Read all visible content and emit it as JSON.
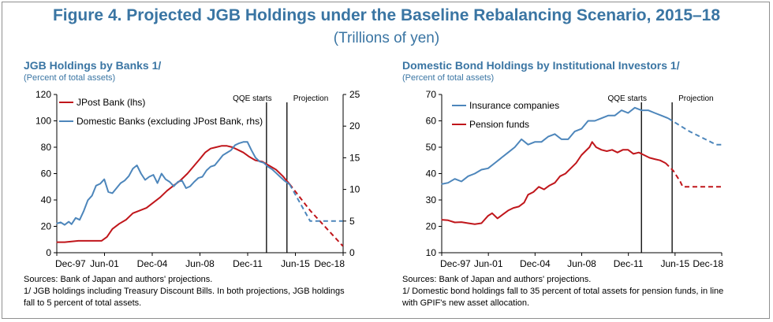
{
  "figure": {
    "title": "Figure 4. Projected JGB Holdings under the Baseline Rebalancing Scenario, 2015–18",
    "subtitle": "(Trillions of yen)"
  },
  "colors": {
    "title": "#3a75a3",
    "red": "#c0161b",
    "blue": "#4d86bb",
    "black": "#000000"
  },
  "left": {
    "title": "JGB Holdings by Banks 1/",
    "subtitle": "(Percent of total assets)",
    "sources": "Sources: Bank of Japan and authors' projections.",
    "note_line1": "1/ JGB holdings including Treasury Discount Bills. In both projections, JGB holdings",
    "note_line2": "fall to 5 percent of total assets."
  },
  "right": {
    "title": "Domestic Bond Holdings by Institutional Investors 1/",
    "subtitle": "(Percent of total assets)",
    "sources": "Sources: Bank of Japan and authors' projections.",
    "note_line1": "1/ Domestic bond holdings fall to 35 percent of total assets for pension funds, in line",
    "note_line2": "with GPIF's new asset allocation."
  },
  "chart_data": [
    {
      "type": "line",
      "x_ticks": [
        "Dec-97",
        "Jun-01",
        "Dec-04",
        "Jun-08",
        "Dec-11",
        "Jun-15",
        "Dec-18"
      ],
      "x_range": [
        1997.92,
        2018.92
      ],
      "ylim_left": [
        0,
        120
      ],
      "y_ticks_left": [
        0,
        20,
        40,
        60,
        80,
        100,
        120
      ],
      "ylim_right": [
        0,
        25
      ],
      "y_ticks_right": [
        0,
        5,
        10,
        15,
        20,
        25
      ],
      "annotations": [
        {
          "text": "QQE starts",
          "x": 2013.3
        },
        {
          "text": "Projection",
          "x": 2014.8
        }
      ],
      "legend_placement": "top-left",
      "series": [
        {
          "name": "JPost Bank (lhs)",
          "axis": "left",
          "color": "#c0161b",
          "points": [
            [
              1997.9,
              8
            ],
            [
              1998.5,
              8
            ],
            [
              1999.5,
              9
            ],
            [
              2000.5,
              9
            ],
            [
              2001.2,
              9
            ],
            [
              2001.6,
              12
            ],
            [
              2002,
              18
            ],
            [
              2002.5,
              22
            ],
            [
              2003,
              25
            ],
            [
              2003.5,
              30
            ],
            [
              2004,
              32
            ],
            [
              2004.5,
              34
            ],
            [
              2005,
              38
            ],
            [
              2005.5,
              42
            ],
            [
              2006,
              47
            ],
            [
              2006.5,
              51
            ],
            [
              2007,
              55
            ],
            [
              2007.5,
              60
            ],
            [
              2008,
              66
            ],
            [
              2008.4,
              71
            ],
            [
              2008.8,
              76
            ],
            [
              2009.2,
              79
            ],
            [
              2009.6,
              80
            ],
            [
              2010,
              81
            ],
            [
              2010.4,
              81
            ],
            [
              2010.8,
              80
            ],
            [
              2011.2,
              78
            ],
            [
              2011.6,
              76
            ],
            [
              2012,
              73
            ],
            [
              2012.5,
              70
            ],
            [
              2013,
              69
            ],
            [
              2013.5,
              66
            ],
            [
              2014,
              63
            ],
            [
              2014.5,
              58
            ],
            [
              2015,
              52
            ]
          ],
          "projection": [
            [
              2015,
              52
            ],
            [
              2016.5,
              32
            ],
            [
              2018.9,
              5
            ]
          ]
        },
        {
          "name": "Domestic Banks (excluding JPost Bank, rhs)",
          "axis": "right",
          "color": "#4d86bb",
          "points": [
            [
              1997.9,
              4.6
            ],
            [
              1998.2,
              4.8
            ],
            [
              1998.5,
              4.4
            ],
            [
              1998.8,
              4.9
            ],
            [
              1999,
              4.5
            ],
            [
              1999.3,
              5.5
            ],
            [
              1999.6,
              5.2
            ],
            [
              1999.9,
              6.6
            ],
            [
              2000.2,
              8.3
            ],
            [
              2000.5,
              9.0
            ],
            [
              2000.8,
              10.6
            ],
            [
              2001.1,
              10.9
            ],
            [
              2001.4,
              11.6
            ],
            [
              2001.7,
              9.6
            ],
            [
              2002,
              9.4
            ],
            [
              2002.3,
              10.2
            ],
            [
              2002.6,
              11.0
            ],
            [
              2002.9,
              11.4
            ],
            [
              2003.2,
              12.1
            ],
            [
              2003.5,
              13.3
            ],
            [
              2003.8,
              13.8
            ],
            [
              2004.1,
              12.5
            ],
            [
              2004.4,
              11.5
            ],
            [
              2004.7,
              12.0
            ],
            [
              2005,
              12.3
            ],
            [
              2005.3,
              11.0
            ],
            [
              2005.6,
              12.5
            ],
            [
              2005.9,
              11.6
            ],
            [
              2006.2,
              11.2
            ],
            [
              2006.5,
              10.5
            ],
            [
              2006.8,
              11.2
            ],
            [
              2007.1,
              11.4
            ],
            [
              2007.4,
              10.2
            ],
            [
              2007.7,
              10.5
            ],
            [
              2008,
              11.2
            ],
            [
              2008.3,
              11.8
            ],
            [
              2008.6,
              12.0
            ],
            [
              2008.9,
              13.0
            ],
            [
              2009.2,
              13.6
            ],
            [
              2009.5,
              13.8
            ],
            [
              2009.8,
              14.6
            ],
            [
              2010.1,
              15.4
            ],
            [
              2010.4,
              15.8
            ],
            [
              2010.7,
              16.2
            ],
            [
              2011,
              17.0
            ],
            [
              2011.3,
              17.3
            ],
            [
              2011.6,
              17.5
            ],
            [
              2011.9,
              17.5
            ],
            [
              2012.2,
              16.2
            ],
            [
              2012.5,
              15.0
            ],
            [
              2012.8,
              14.4
            ],
            [
              2013.1,
              14.2
            ],
            [
              2013.4,
              13.6
            ],
            [
              2013.7,
              13.2
            ],
            [
              2014,
              12.6
            ],
            [
              2014.3,
              12.0
            ],
            [
              2014.6,
              11.4
            ],
            [
              2015,
              10.8
            ]
          ],
          "projection": [
            [
              2015,
              10.8
            ],
            [
              2016.5,
              5
            ],
            [
              2018.9,
              5
            ]
          ]
        }
      ]
    },
    {
      "type": "line",
      "x_ticks": [
        "Dec-97",
        "Jun-01",
        "Dec-04",
        "Jun-08",
        "Dec-11",
        "Jun-15",
        "Dec-18"
      ],
      "x_range": [
        1997.92,
        2018.92
      ],
      "ylim": [
        10,
        70
      ],
      "y_ticks": [
        10,
        20,
        30,
        40,
        50,
        60,
        70
      ],
      "annotations": [
        {
          "text": "QQE starts",
          "x": 2012.9
        },
        {
          "text": "Projection",
          "x": 2015.2
        }
      ],
      "legend_placement": "top-left",
      "series": [
        {
          "name": "Insurance companies",
          "color": "#4d86bb",
          "points": [
            [
              1997.9,
              36
            ],
            [
              1998.4,
              36.5
            ],
            [
              1998.9,
              38
            ],
            [
              1999.4,
              37
            ],
            [
              1999.9,
              39
            ],
            [
              2000.4,
              40
            ],
            [
              2000.9,
              41.5
            ],
            [
              2001.4,
              42
            ],
            [
              2001.9,
              44
            ],
            [
              2002.4,
              46
            ],
            [
              2002.9,
              48
            ],
            [
              2003.4,
              50
            ],
            [
              2003.9,
              53
            ],
            [
              2004.4,
              51
            ],
            [
              2004.9,
              52
            ],
            [
              2005.4,
              52
            ],
            [
              2005.9,
              54
            ],
            [
              2006.4,
              55
            ],
            [
              2006.9,
              53
            ],
            [
              2007.4,
              53
            ],
            [
              2007.9,
              56
            ],
            [
              2008.4,
              57
            ],
            [
              2008.9,
              60
            ],
            [
              2009.4,
              60
            ],
            [
              2009.9,
              61
            ],
            [
              2010.4,
              62
            ],
            [
              2010.9,
              62
            ],
            [
              2011.4,
              64
            ],
            [
              2011.9,
              63
            ],
            [
              2012.4,
              65
            ],
            [
              2012.9,
              64
            ],
            [
              2013.4,
              64
            ],
            [
              2013.9,
              63
            ],
            [
              2014.4,
              62
            ],
            [
              2014.9,
              61
            ]
          ],
          "projection": [
            [
              2014.9,
              61
            ],
            [
              2016.5,
              56
            ],
            [
              2018.5,
              51
            ],
            [
              2018.9,
              51
            ]
          ]
        },
        {
          "name": "Pension funds",
          "color": "#c0161b",
          "points": [
            [
              1997.9,
              22.5
            ],
            [
              1998.4,
              22.3
            ],
            [
              1998.9,
              21.5
            ],
            [
              1999.4,
              21.6
            ],
            [
              1999.9,
              21.2
            ],
            [
              2000.4,
              20.8
            ],
            [
              2000.9,
              21.2
            ],
            [
              2001.4,
              24
            ],
            [
              2001.7,
              25
            ],
            [
              2002.1,
              23
            ],
            [
              2002.5,
              24.5
            ],
            [
              2002.9,
              26
            ],
            [
              2003.3,
              27
            ],
            [
              2003.7,
              27.5
            ],
            [
              2004.1,
              29
            ],
            [
              2004.4,
              32
            ],
            [
              2004.8,
              33
            ],
            [
              2005.2,
              35
            ],
            [
              2005.6,
              34
            ],
            [
              2006,
              35.5
            ],
            [
              2006.4,
              36.5
            ],
            [
              2006.8,
              39
            ],
            [
              2007.2,
              40
            ],
            [
              2007.6,
              42
            ],
            [
              2008,
              44
            ],
            [
              2008.4,
              47
            ],
            [
              2008.7,
              48.5
            ],
            [
              2009,
              50
            ],
            [
              2009.2,
              52
            ],
            [
              2009.5,
              50
            ],
            [
              2009.9,
              49
            ],
            [
              2010.3,
              48.5
            ],
            [
              2010.7,
              49
            ],
            [
              2011.1,
              48
            ],
            [
              2011.5,
              49
            ],
            [
              2011.9,
              49
            ],
            [
              2012.3,
              47.5
            ],
            [
              2012.7,
              48
            ],
            [
              2013.1,
              47
            ],
            [
              2013.5,
              46
            ],
            [
              2013.9,
              45.5
            ],
            [
              2014.3,
              45
            ],
            [
              2014.7,
              44
            ]
          ],
          "projection": [
            [
              2014.7,
              44
            ],
            [
              2015.3,
              41
            ],
            [
              2015.8,
              37
            ],
            [
              2016,
              35
            ],
            [
              2018.9,
              35
            ]
          ]
        }
      ]
    }
  ]
}
